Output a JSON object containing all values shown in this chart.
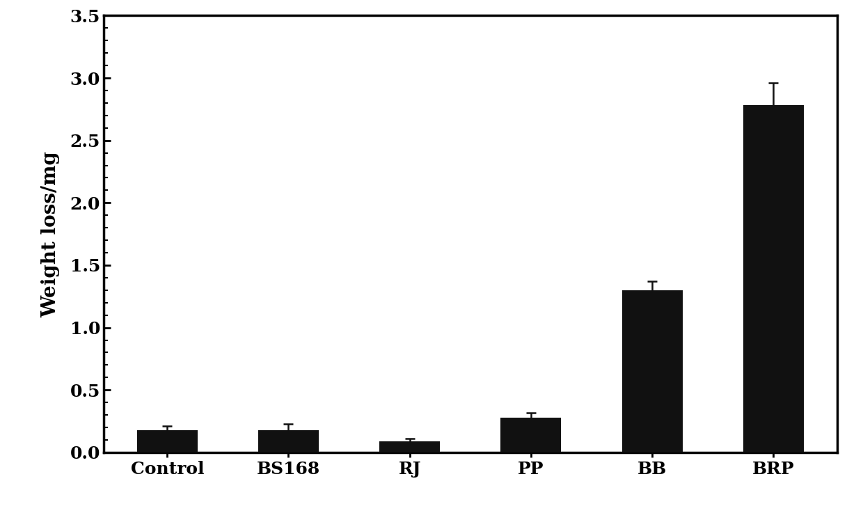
{
  "categories": [
    "Control",
    "BS168",
    "RJ",
    "PP",
    "BB",
    "BRP"
  ],
  "values": [
    0.18,
    0.18,
    0.09,
    0.28,
    1.3,
    2.78
  ],
  "errors": [
    0.03,
    0.05,
    0.02,
    0.04,
    0.07,
    0.18
  ],
  "bar_color": "#111111",
  "ylabel": "Weight loss/mg",
  "ylim": [
    0,
    3.5
  ],
  "yticks": [
    0,
    0.5,
    1.0,
    1.5,
    2.0,
    2.5,
    3.0,
    3.5
  ],
  "background_color": "#ffffff",
  "bar_width": 0.5,
  "ylabel_fontsize": 20,
  "tick_fontsize": 18,
  "label_fontsize": 18,
  "error_capsize": 5,
  "error_linewidth": 1.8,
  "error_color": "#111111",
  "spine_linewidth": 2.5,
  "minor_tick_count": 5
}
